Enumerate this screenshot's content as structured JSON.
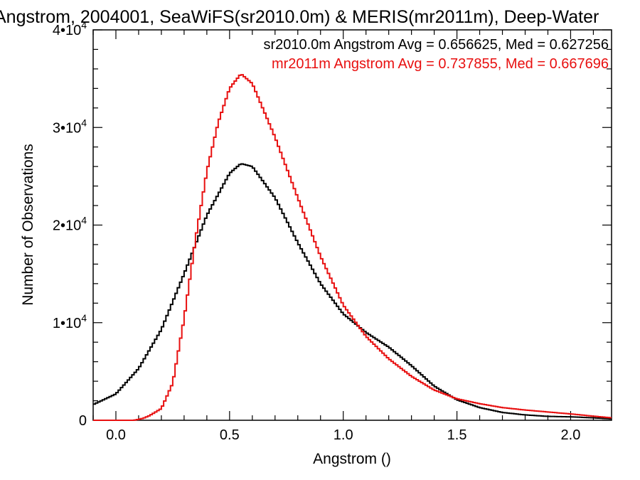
{
  "chart_data": {
    "type": "line",
    "title": "Angstrom, 2004001, SeaWiFS(sr2010.0m) & MERIS(mr2011m), Deep-Water",
    "xlabel": "Angstrom ()",
    "ylabel": "Number of Observations",
    "xlim": [
      -0.1,
      2.18
    ],
    "ylim": [
      0,
      40000
    ],
    "x_ticks": [
      {
        "value": 0.0,
        "label": "0.0"
      },
      {
        "value": 0.5,
        "label": "0.5"
      },
      {
        "value": 1.0,
        "label": "1.0"
      },
      {
        "value": 1.5,
        "label": "1.5"
      },
      {
        "value": 2.0,
        "label": "2.0"
      }
    ],
    "y_ticks": [
      {
        "value": 0,
        "mantissa": "0",
        "exp": ""
      },
      {
        "value": 10000,
        "mantissa": "1•10",
        "exp": "4"
      },
      {
        "value": 20000,
        "mantissa": "2•10",
        "exp": "4"
      },
      {
        "value": 30000,
        "mantissa": "3•10",
        "exp": "4"
      },
      {
        "value": 40000,
        "mantissa": "4•10",
        "exp": "4"
      }
    ],
    "grid": false,
    "legend_position": "top-right",
    "series": [
      {
        "name": "sr2010.0m",
        "label": "sr2010.0m Angstrom Avg = 0.656625, Med = 0.627256",
        "color": "#000000",
        "step": "histogram",
        "x": [
          -0.1,
          0.0,
          0.1,
          0.2,
          0.3,
          0.4,
          0.5,
          0.55,
          0.6,
          0.7,
          0.8,
          0.9,
          1.0,
          1.1,
          1.2,
          1.3,
          1.4,
          1.5,
          1.6,
          1.7,
          1.8,
          1.9,
          2.0,
          2.1,
          2.18
        ],
        "values": [
          1600,
          2700,
          5300,
          9300,
          15000,
          21000,
          25300,
          26300,
          26000,
          22800,
          18200,
          14000,
          10900,
          9000,
          7500,
          5600,
          3500,
          2100,
          1300,
          800,
          550,
          400,
          350,
          250,
          150
        ]
      },
      {
        "name": "mr2011m",
        "label": "mr2011m Angstrom Avg = 0.737855, Med = 0.667696",
        "color": "#e81010",
        "step": "histogram",
        "x": [
          -0.1,
          0.0,
          0.08,
          0.12,
          0.15,
          0.2,
          0.25,
          0.3,
          0.35,
          0.4,
          0.45,
          0.5,
          0.55,
          0.6,
          0.7,
          0.8,
          0.9,
          1.0,
          1.1,
          1.2,
          1.3,
          1.4,
          1.5,
          1.6,
          1.7,
          1.8,
          1.9,
          2.0,
          2.1,
          2.18
        ],
        "values": [
          0,
          0,
          0,
          200,
          500,
          1200,
          3800,
          10400,
          18500,
          25500,
          30500,
          34000,
          35500,
          34500,
          29000,
          22800,
          16800,
          11800,
          8600,
          6300,
          4500,
          3100,
          2200,
          1700,
          1300,
          1050,
          850,
          650,
          420,
          250
        ]
      }
    ]
  }
}
